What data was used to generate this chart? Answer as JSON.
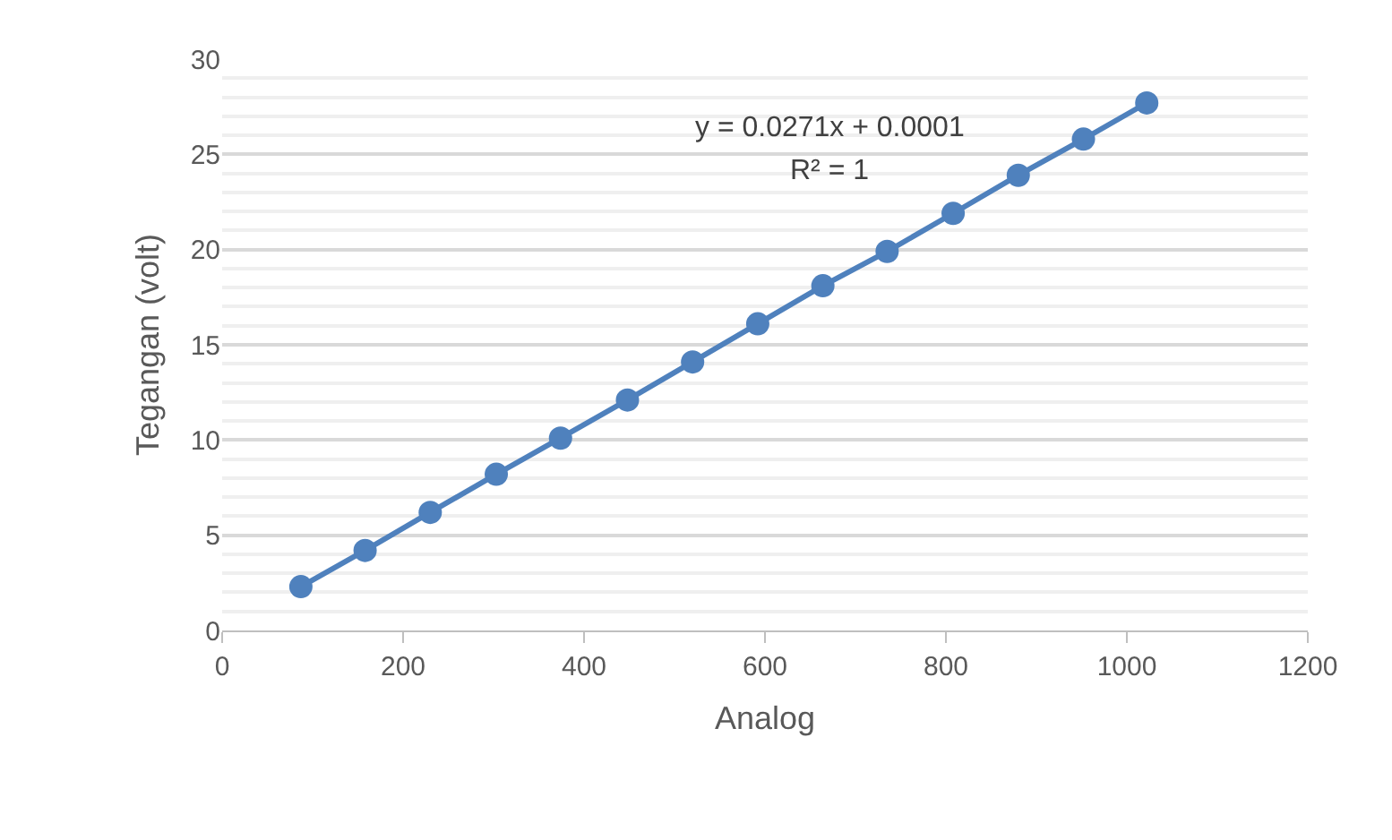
{
  "chart_data": {
    "type": "line",
    "xlabel": "Analog",
    "ylabel": "Tegangan (volt)",
    "annotations": [
      "y = 0.0271x + 0.0001",
      "R² = 1"
    ],
    "x": [
      87,
      158,
      230,
      303,
      374,
      448,
      520,
      592,
      664,
      735,
      808,
      880,
      952,
      1022
    ],
    "series": [
      {
        "color": "#4f81bd",
        "values": [
          2.3,
          4.2,
          6.2,
          8.2,
          10.1,
          12.1,
          14.1,
          16.1,
          18.1,
          19.9,
          21.9,
          23.9,
          25.8,
          27.7
        ]
      }
    ],
    "xlim": [
      0,
      1200
    ],
    "xticks": [
      0,
      200,
      400,
      600,
      800,
      1000,
      1200
    ],
    "ylim": [
      0,
      30
    ],
    "yticks": [
      0,
      5,
      10,
      15,
      20,
      25,
      30
    ],
    "grid": "y",
    "marker": "circle",
    "line_style": "solid"
  }
}
